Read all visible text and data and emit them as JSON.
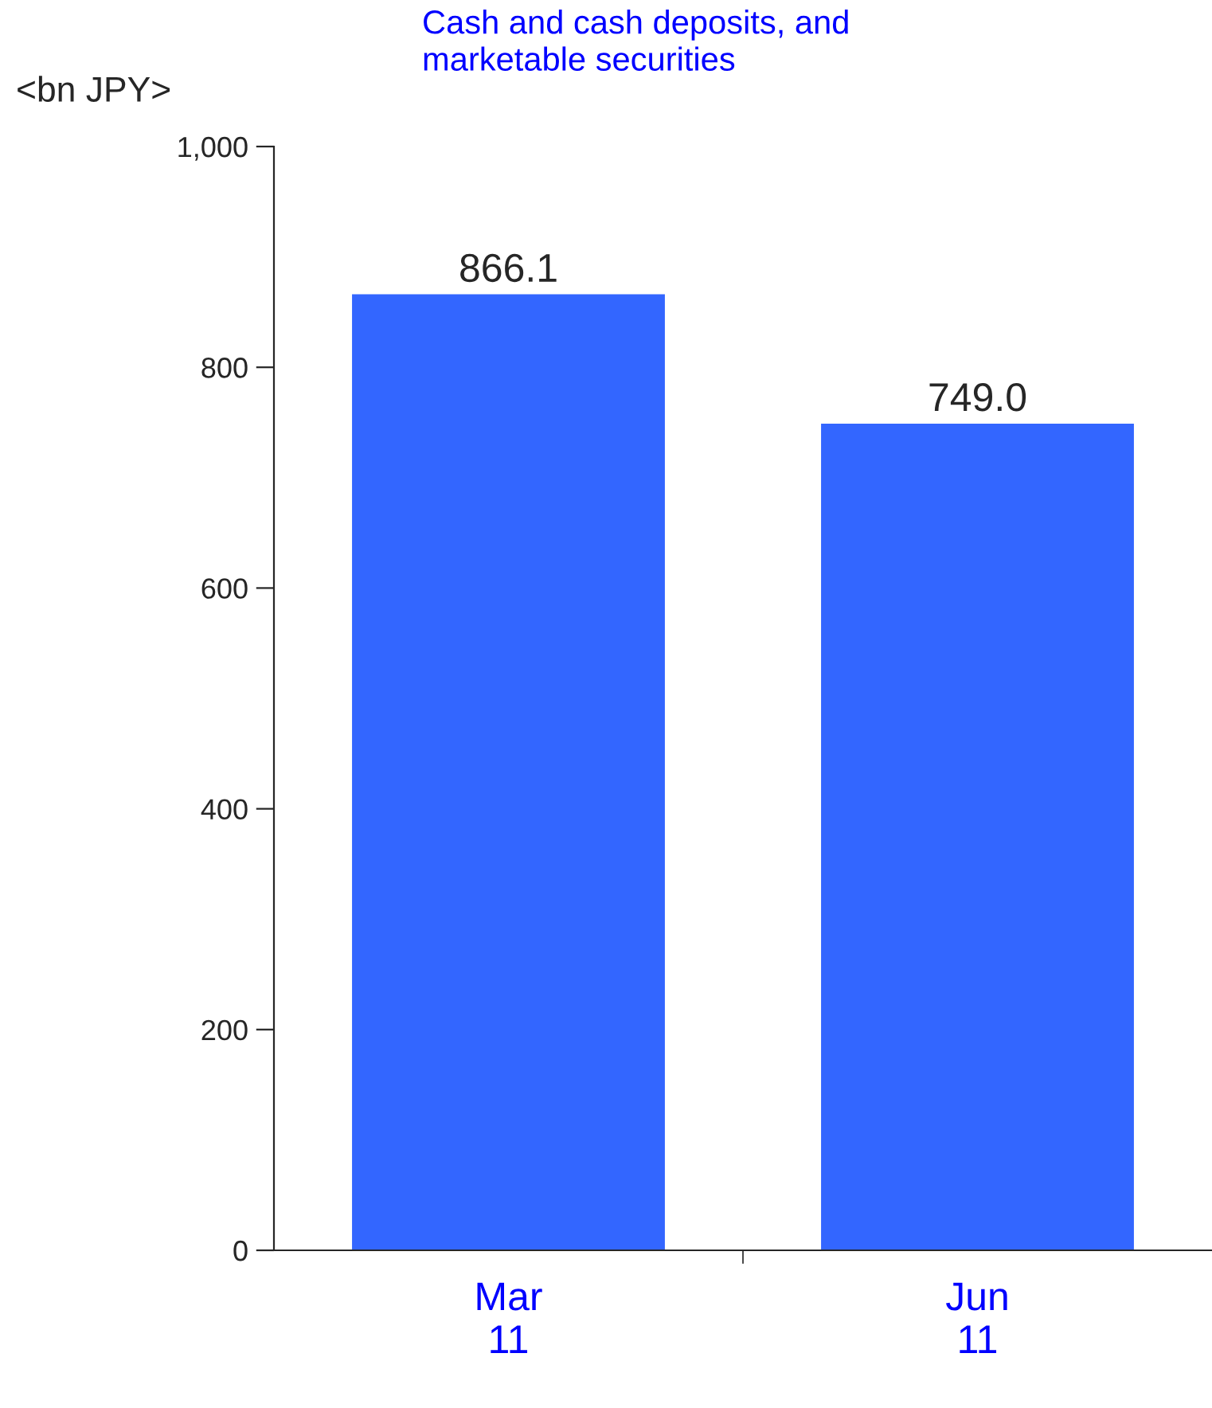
{
  "chart_data": {
    "type": "bar",
    "title": "Cash and cash deposits, and\nmarketable securities",
    "ylabel": "<bn JPY>",
    "categories": [
      "Mar\n11",
      "Jun\n11"
    ],
    "values": [
      866.1,
      749.0
    ],
    "value_labels": [
      "866.1",
      "749.0"
    ],
    "color": "#3366ff",
    "ylim": [
      0,
      1000
    ],
    "yticks": [
      0,
      200,
      400,
      600,
      800,
      {
        "value": 1000,
        "label": "1,000"
      }
    ],
    "grid": false
  }
}
